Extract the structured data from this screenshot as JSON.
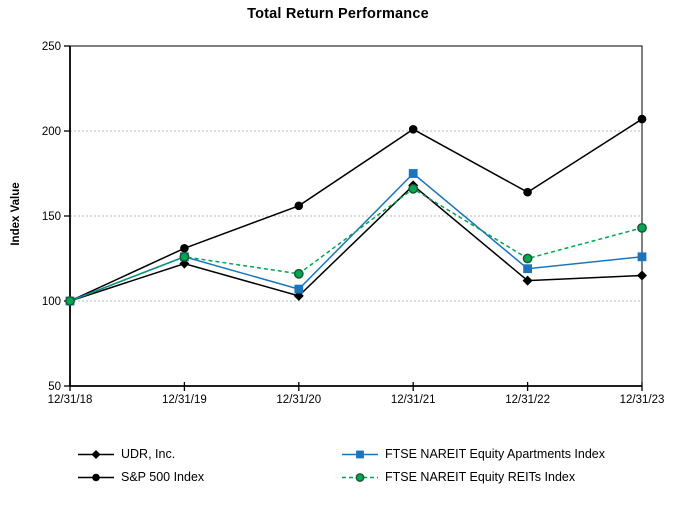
{
  "chart_data": {
    "type": "line",
    "title": "Total Return Performance",
    "ylabel": "Index Value",
    "xlabel": "",
    "categories": [
      "12/31/18",
      "12/31/19",
      "12/31/20",
      "12/31/21",
      "12/31/22",
      "12/31/23"
    ],
    "ylim": [
      50,
      250
    ],
    "yticks": [
      50,
      100,
      150,
      200,
      250
    ],
    "grid": "horizontal dashed gray lines at 100, 150, 200",
    "legend_position": "bottom, two columns",
    "colors": {
      "axis": "#000000",
      "gridline": "#b8b8b8",
      "blue": "#1b75bc",
      "green": "#00a651"
    },
    "series": [
      {
        "name": "UDR, Inc.",
        "color": "#000000",
        "line": "solid",
        "marker": "diamond",
        "marker_color": "#000000",
        "marker_outline": "#000000",
        "values": [
          100,
          122,
          103,
          168,
          112,
          115
        ]
      },
      {
        "name": "S&P 500 Index",
        "color": "#000000",
        "line": "solid",
        "marker": "circle",
        "marker_color": "#000000",
        "marker_outline": "#000000",
        "values": [
          100,
          131,
          156,
          201,
          164,
          207
        ]
      },
      {
        "name": "FTSE NAREIT Equity Apartments Index",
        "color": "#1b75bc",
        "line": "solid",
        "marker": "square",
        "marker_color": "#1b75bc",
        "marker_outline": "#1b75bc",
        "values": [
          100,
          126,
          107,
          175,
          119,
          126
        ]
      },
      {
        "name": "FTSE NAREIT Equity REITs Index",
        "color": "#00a651",
        "line": "dashed",
        "marker": "circle-outlined",
        "marker_color": "#00a651",
        "marker_outline": "#1a5632",
        "values": [
          100,
          126,
          116,
          166,
          125,
          143
        ]
      }
    ]
  }
}
